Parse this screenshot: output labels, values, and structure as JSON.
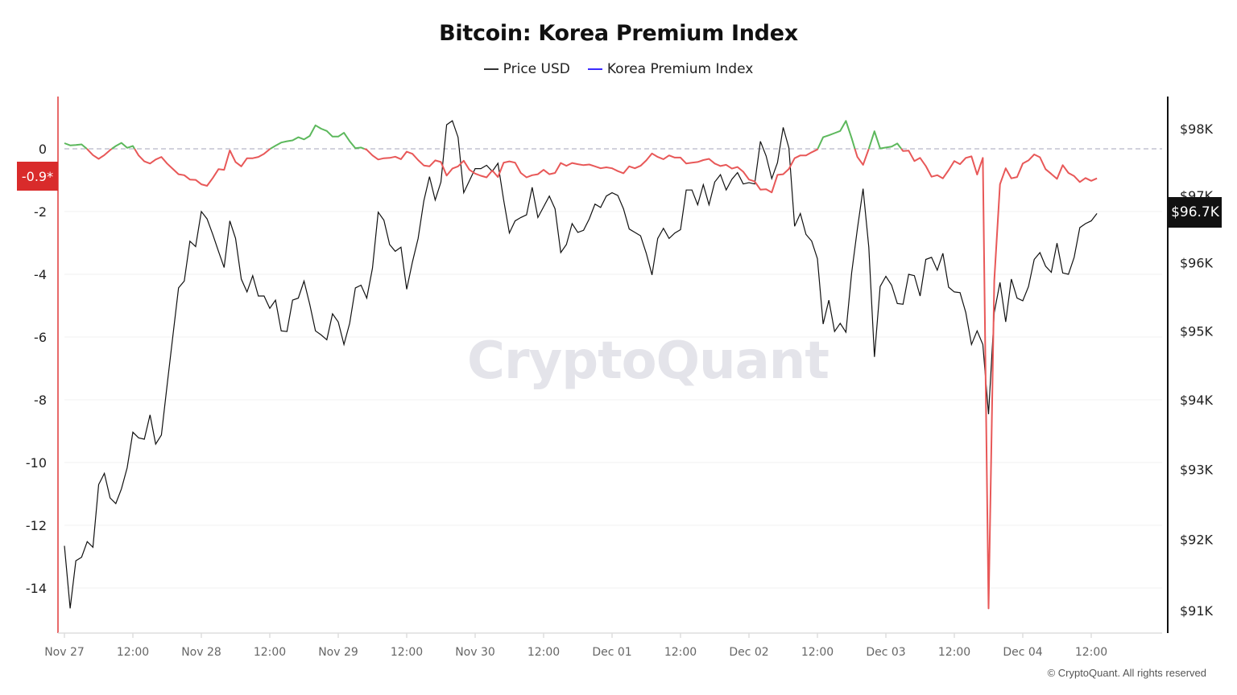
{
  "title": "Bitcoin: Korea Premium Index",
  "legend": [
    {
      "label": "Price USD",
      "color": "#333333"
    },
    {
      "label": "Korea Premium Index",
      "color": "#3b2bff"
    }
  ],
  "watermark": "CryptoQuant",
  "copyright": "© CryptoQuant. All rights reserved",
  "badges": {
    "premium_current": "-0.9*",
    "price_current": "$96.7K"
  },
  "colors": {
    "positive": "#5cb85c",
    "negative": "#e85858",
    "price": "#111111",
    "left_axis": "#e86a6a",
    "zero_line": "#b8b8c8"
  },
  "chart_data": {
    "type": "line",
    "title": "Bitcoin: Korea Premium Index",
    "interval": "1 hour",
    "left_axis": {
      "series": "Korea Premium Index",
      "ticks": [
        "0",
        "-2",
        "-4",
        "-6",
        "-8",
        "-10",
        "-12",
        "-14"
      ],
      "range": [
        -15,
        1.5
      ]
    },
    "right_axis": {
      "series": "Price USD",
      "scale": "log",
      "ticks": [
        "$98K",
        "$97K",
        "$96K",
        "$95K",
        "$94K",
        "$93K",
        "$92K",
        "$91K"
      ],
      "range": [
        90800,
        98500
      ]
    },
    "x_ticks": [
      "Nov 27",
      "12:00",
      "Nov 28",
      "12:00",
      "Nov 29",
      "12:00",
      "Nov 30",
      "12:00",
      "Dec 01",
      "12:00",
      "Dec 02",
      "12:00",
      "Dec 03",
      "12:00",
      "Dec 04",
      "12:00"
    ],
    "zero_line": "dashed",
    "grid": "horizontal",
    "days": [
      {
        "date": "Nov 27",
        "price_usd": [
          91910,
          91030,
          91700,
          91750,
          91970,
          91890,
          92780,
          92940,
          92590,
          92510,
          92720,
          93020,
          93530,
          93450,
          93430,
          93780,
          93360,
          93490,
          94210,
          94920,
          95630,
          95730,
          96320,
          96240
        ],
        "premium": [
          0.18,
          0.11,
          0.12,
          0.14,
          -0.01,
          -0.2,
          -0.32,
          -0.2,
          -0.04,
          0.09,
          0.19,
          0.03,
          0.09,
          -0.21,
          -0.4,
          -0.47,
          -0.34,
          -0.26,
          -0.47,
          -0.64,
          -0.81,
          -0.84,
          -0.98,
          -0.99
        ]
      },
      {
        "date": "Nov 28",
        "price_usd": [
          96760,
          96650,
          96420,
          96170,
          95930,
          96620,
          96360,
          95760,
          95570,
          95810,
          95510,
          95510,
          95330,
          95450,
          95000,
          94990,
          95450,
          95480,
          95730,
          95390,
          95000,
          94940,
          94870,
          95250
        ],
        "premium": [
          -1.13,
          -1.18,
          -0.93,
          -0.65,
          -0.67,
          -0.05,
          -0.42,
          -0.56,
          -0.3,
          -0.3,
          -0.26,
          -0.16,
          -0.01,
          0.1,
          0.2,
          0.24,
          0.27,
          0.37,
          0.3,
          0.41,
          0.75,
          0.64,
          0.57,
          0.39
        ]
      },
      {
        "date": "Nov 29",
        "price_usd": [
          95130,
          94800,
          95110,
          95630,
          95670,
          95480,
          95920,
          96750,
          96630,
          96270,
          96170,
          96230,
          95610,
          96010,
          96360,
          96920,
          97280,
          96930,
          97200,
          98060,
          98120,
          97870,
          97040,
          97220
        ],
        "premium": [
          0.39,
          0.51,
          0.24,
          0.02,
          0.04,
          -0.03,
          -0.21,
          -0.34,
          -0.3,
          -0.29,
          -0.25,
          -0.33,
          -0.09,
          -0.16,
          -0.36,
          -0.53,
          -0.56,
          -0.37,
          -0.42,
          -0.85,
          -0.63,
          -0.56,
          -0.38,
          -0.67
        ]
      },
      {
        "date": "Nov 30",
        "price_usd": [
          97400,
          97400,
          97450,
          97360,
          97480,
          96930,
          96440,
          96620,
          96670,
          96710,
          97120,
          96670,
          96830,
          96990,
          96800,
          96150,
          96270,
          96580,
          96450,
          96480,
          96650,
          96870,
          96820,
          96990
        ],
        "premium": [
          -0.79,
          -0.86,
          -0.91,
          -0.69,
          -0.9,
          -0.44,
          -0.4,
          -0.44,
          -0.77,
          -0.91,
          -0.84,
          -0.81,
          -0.67,
          -0.81,
          -0.77,
          -0.45,
          -0.54,
          -0.45,
          -0.49,
          -0.52,
          -0.5,
          -0.56,
          -0.62,
          -0.59
        ]
      },
      {
        "date": "Dec 01",
        "price_usd": [
          97040,
          97000,
          96800,
          96500,
          96450,
          96400,
          96140,
          95820,
          96360,
          96510,
          96360,
          96440,
          96490,
          97080,
          97080,
          96860,
          97160,
          96860,
          97200,
          97310,
          97080,
          97240,
          97340,
          97170
        ],
        "premium": [
          -0.62,
          -0.71,
          -0.78,
          -0.56,
          -0.62,
          -0.54,
          -0.37,
          -0.15,
          -0.26,
          -0.33,
          -0.21,
          -0.28,
          -0.28,
          -0.47,
          -0.44,
          -0.42,
          -0.36,
          -0.32,
          -0.47,
          -0.55,
          -0.51,
          -0.63,
          -0.58,
          -0.73
        ]
      },
      {
        "date": "Dec 02",
        "price_usd": [
          97190,
          97170,
          97810,
          97590,
          97250,
          97490,
          98020,
          97710,
          96540,
          96730,
          96420,
          96320,
          96060,
          95100,
          95450,
          94990,
          95110,
          94980,
          95850,
          96500,
          97100,
          96230,
          94620,
          95650
        ],
        "premium": [
          -0.98,
          -1.04,
          -1.3,
          -1.29,
          -1.39,
          -0.83,
          -0.81,
          -0.64,
          -0.3,
          -0.21,
          -0.21,
          -0.11,
          -0.02,
          0.37,
          0.43,
          0.5,
          0.57,
          0.89,
          0.34,
          -0.26,
          -0.51,
          0.0,
          0.56,
          0.01
        ]
      },
      {
        "date": "Dec 03",
        "price_usd": [
          95800,
          95670,
          95400,
          95390,
          95830,
          95810,
          95510,
          96050,
          96080,
          95890,
          96140,
          95640,
          95570,
          95560,
          95270,
          94800,
          95000,
          94800,
          93790,
          95270,
          95710,
          95130,
          95760,
          95480
        ],
        "premium": [
          0.04,
          0.07,
          0.17,
          -0.07,
          -0.06,
          -0.39,
          -0.29,
          -0.55,
          -0.89,
          -0.84,
          -0.94,
          -0.68,
          -0.39,
          -0.49,
          -0.29,
          -0.24,
          -0.82,
          -0.29,
          -14.65,
          -4.2,
          -1.13,
          -0.62,
          -0.94,
          -0.9
        ]
      },
      {
        "date": "Dec 04",
        "price_usd": [
          95440,
          95650,
          96050,
          96150,
          95950,
          95860,
          96290,
          95850,
          95830,
          96080,
          96520,
          96580,
          96620,
          96730
        ],
        "premium": [
          -0.47,
          -0.37,
          -0.18,
          -0.27,
          -0.65,
          -0.8,
          -0.96,
          -0.52,
          -0.77,
          -0.87,
          -1.06,
          -0.93,
          -1.02,
          -0.94
        ]
      }
    ]
  }
}
